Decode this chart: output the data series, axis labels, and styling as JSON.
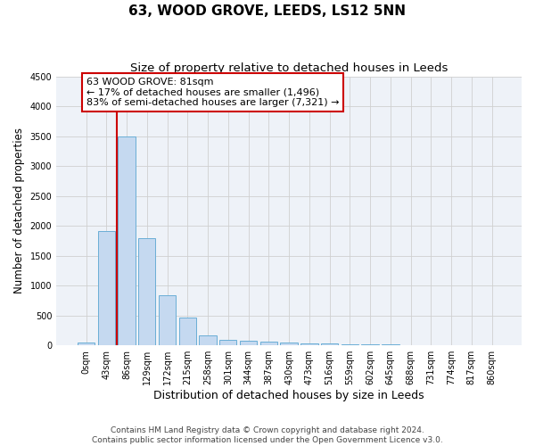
{
  "title": "63, WOOD GROVE, LEEDS, LS12 5NN",
  "subtitle": "Size of property relative to detached houses in Leeds",
  "xlabel": "Distribution of detached houses by size in Leeds",
  "ylabel": "Number of detached properties",
  "categories": [
    "0sqm",
    "43sqm",
    "86sqm",
    "129sqm",
    "172sqm",
    "215sqm",
    "258sqm",
    "301sqm",
    "344sqm",
    "387sqm",
    "430sqm",
    "473sqm",
    "516sqm",
    "559sqm",
    "602sqm",
    "645sqm",
    "688sqm",
    "731sqm",
    "774sqm",
    "817sqm",
    "860sqm"
  ],
  "values": [
    50,
    1920,
    3500,
    1790,
    840,
    460,
    160,
    100,
    75,
    60,
    50,
    35,
    30,
    20,
    15,
    12,
    10,
    8,
    6,
    5,
    4
  ],
  "bar_color": "#c5d9f0",
  "bar_edge_color": "#6aaed6",
  "grid_color": "#d0d0d0",
  "vline_color": "#cc0000",
  "vline_x_index": 2,
  "annotation_title": "63 WOOD GROVE: 81sqm",
  "annotation_line1": "← 17% of detached houses are smaller (1,496)",
  "annotation_line2": "83% of semi-detached houses are larger (7,321) →",
  "footer_line1": "Contains HM Land Registry data © Crown copyright and database right 2024.",
  "footer_line2": "Contains public sector information licensed under the Open Government Licence v3.0.",
  "ylim": [
    0,
    4500
  ],
  "yticks": [
    0,
    500,
    1000,
    1500,
    2000,
    2500,
    3000,
    3500,
    4000,
    4500
  ],
  "title_fontsize": 11,
  "subtitle_fontsize": 9.5,
  "ylabel_fontsize": 8.5,
  "xlabel_fontsize": 9,
  "tick_fontsize": 7,
  "ann_fontsize": 8,
  "footer_fontsize": 6.5,
  "background_color": "#eef2f8"
}
